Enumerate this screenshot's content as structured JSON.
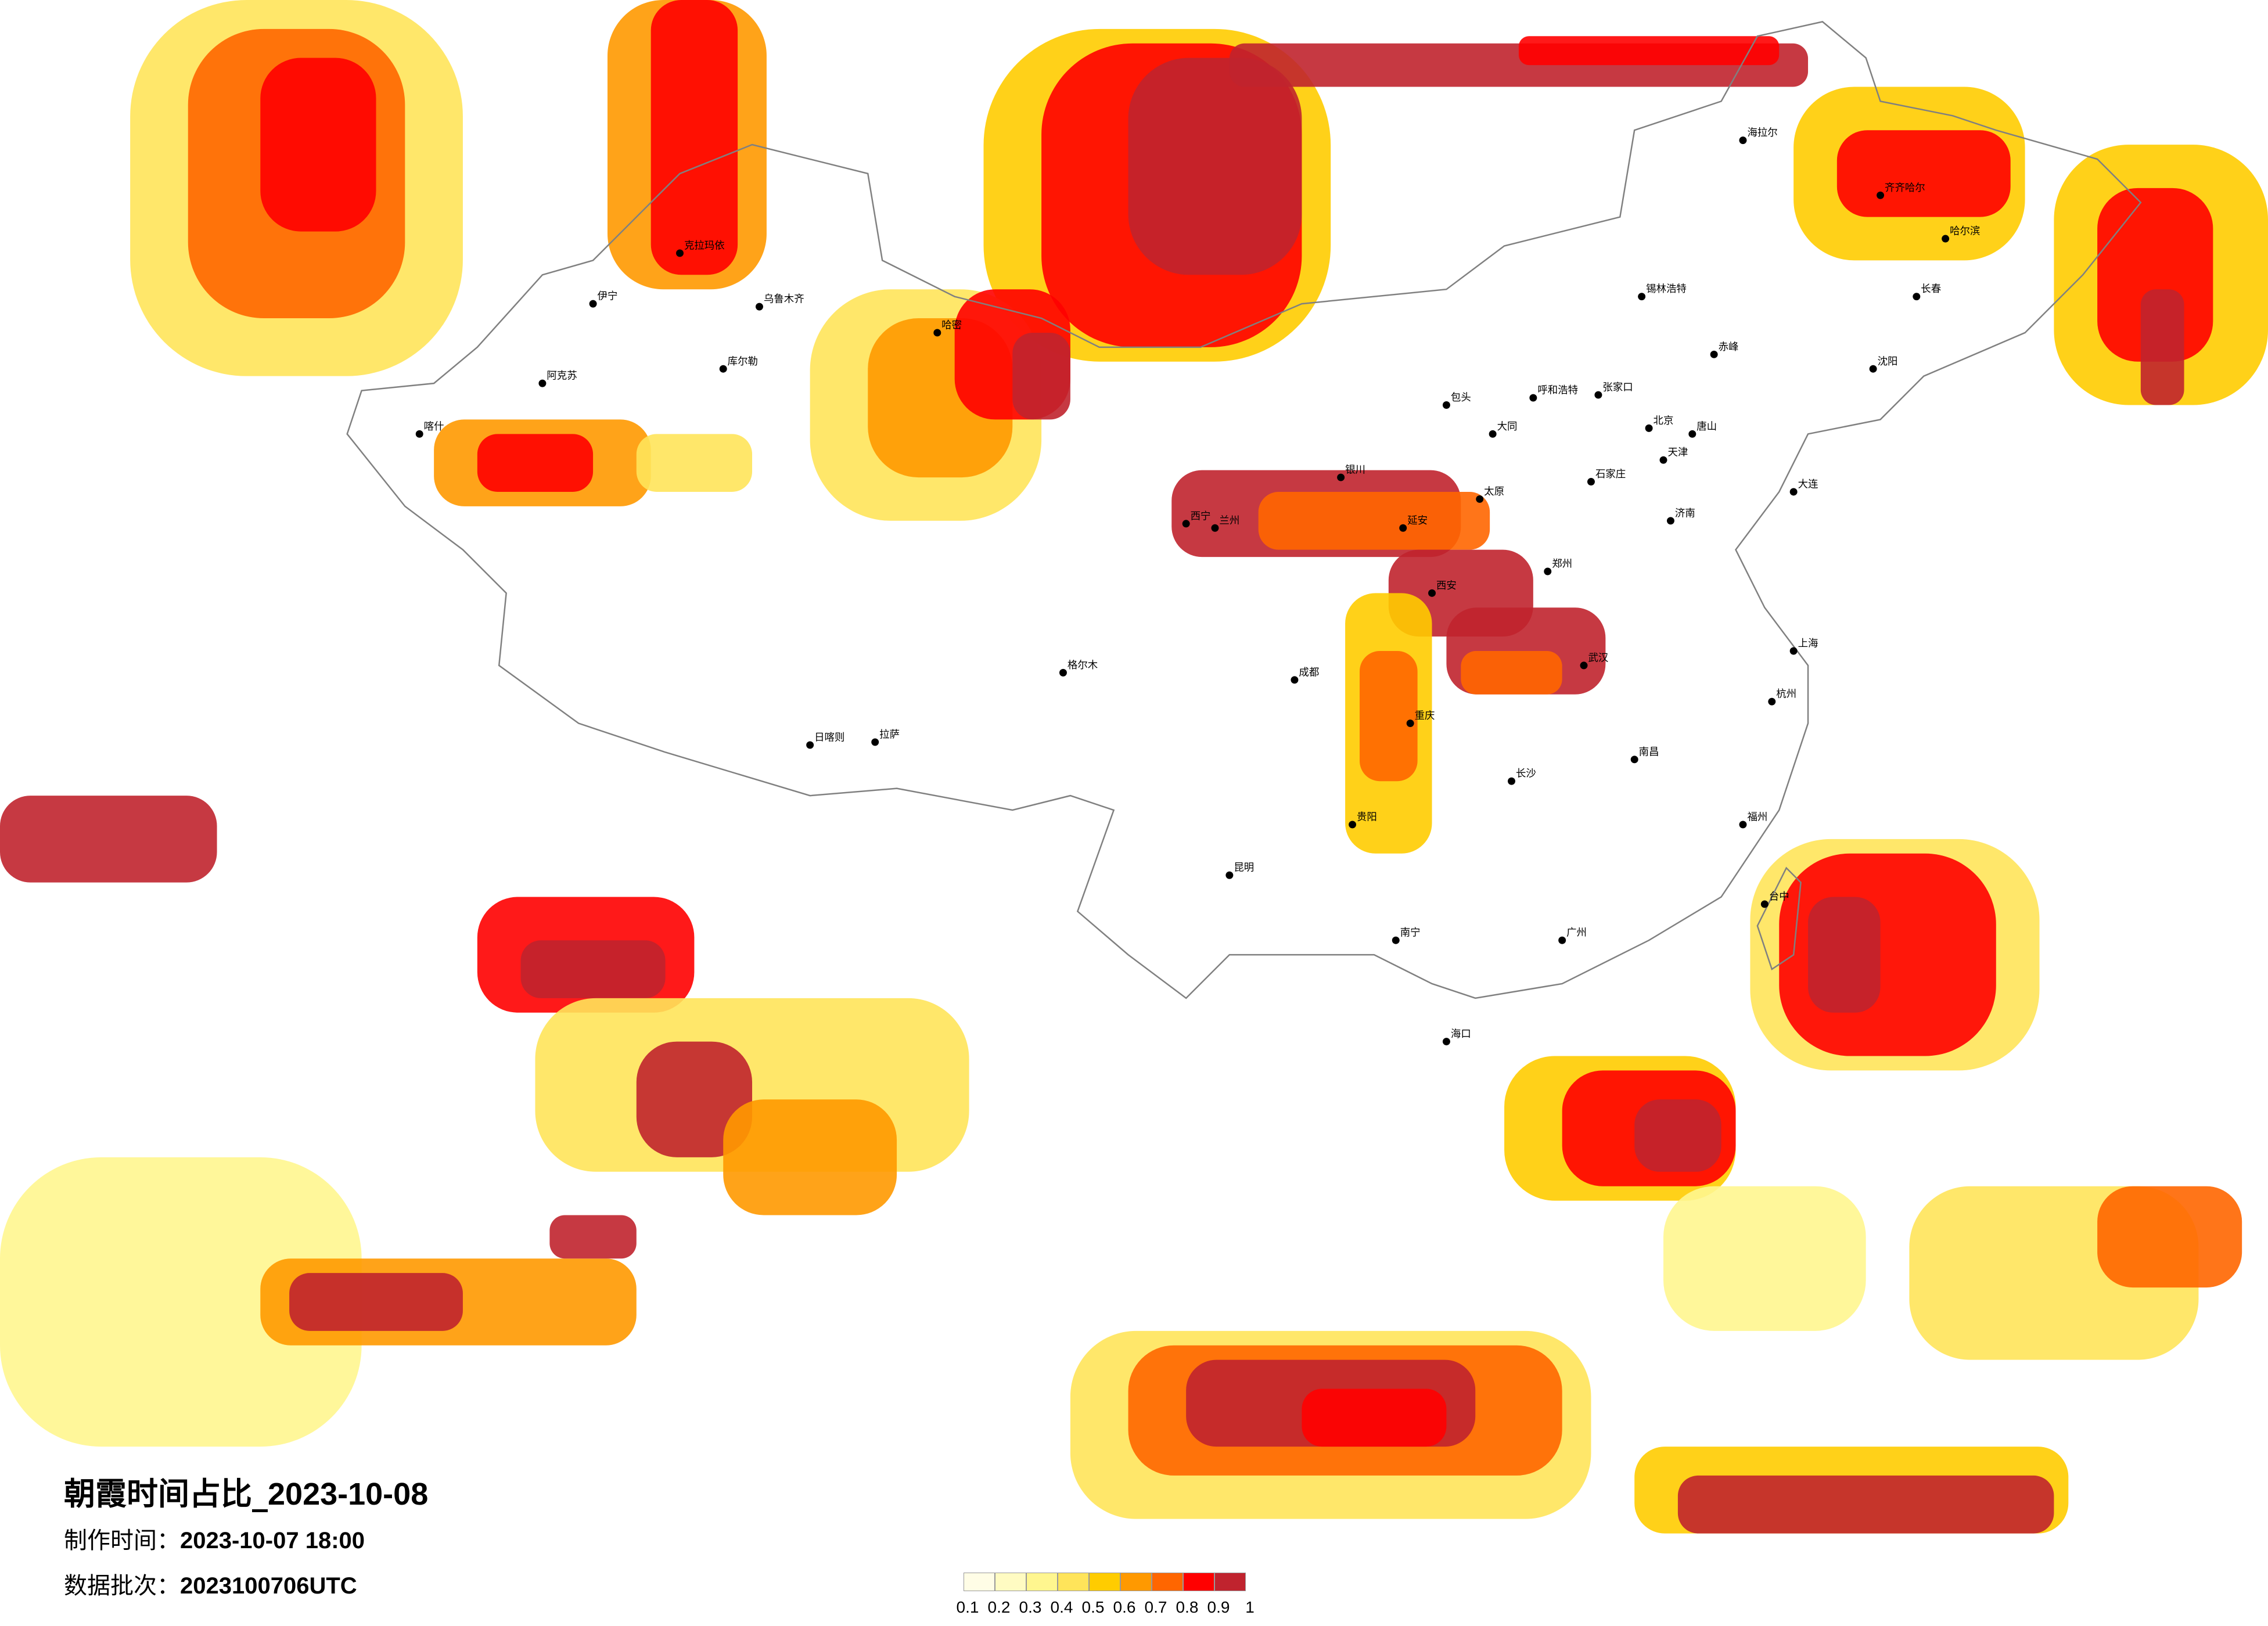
{
  "title": {
    "prefix": "朝霞时间占比_",
    "date": "2023-10-08"
  },
  "production_time": {
    "label": "制作时间：",
    "value": "2023-10-07 18:00"
  },
  "data_batch": {
    "label": "数据批次：",
    "value": "2023100706UTC"
  },
  "legend": {
    "colors": [
      "#fffde6",
      "#fffbc2",
      "#fff68f",
      "#ffe45a",
      "#ffcc00",
      "#ff9900",
      "#ff6600",
      "#ff0000",
      "#c0232e"
    ],
    "ticks": [
      "0.1",
      "0.2",
      "0.3",
      "0.4",
      "0.5",
      "0.6",
      "0.7",
      "0.8",
      "0.9",
      "1"
    ]
  },
  "colors": {
    "boundary": "#808080",
    "city_dot": "#000000",
    "background": "#ffffff"
  },
  "cities": [
    "北京",
    "天津",
    "石家庄",
    "太原",
    "呼和浩特",
    "包头",
    "张家口",
    "济南",
    "郑州",
    "西安",
    "银川",
    "兰州",
    "西宁",
    "拉萨",
    "日喀则",
    "乌鲁木齐",
    "哈密",
    "喀什",
    "阿克苏",
    "库尔勒",
    "伊宁",
    "克拉玛依",
    "哈尔滨",
    "长春",
    "齐齐哈尔",
    "海拉尔",
    "锡林浩特",
    "沈阳",
    "大连",
    "成都",
    "重庆",
    "贵阳",
    "昆明",
    "南宁",
    "广州",
    "长沙",
    "武汉",
    "南昌",
    "上海",
    "杭州",
    "福州",
    "台中",
    "海口",
    "格尔木",
    "赤峰",
    "大同",
    "延安",
    "唐山"
  ]
}
